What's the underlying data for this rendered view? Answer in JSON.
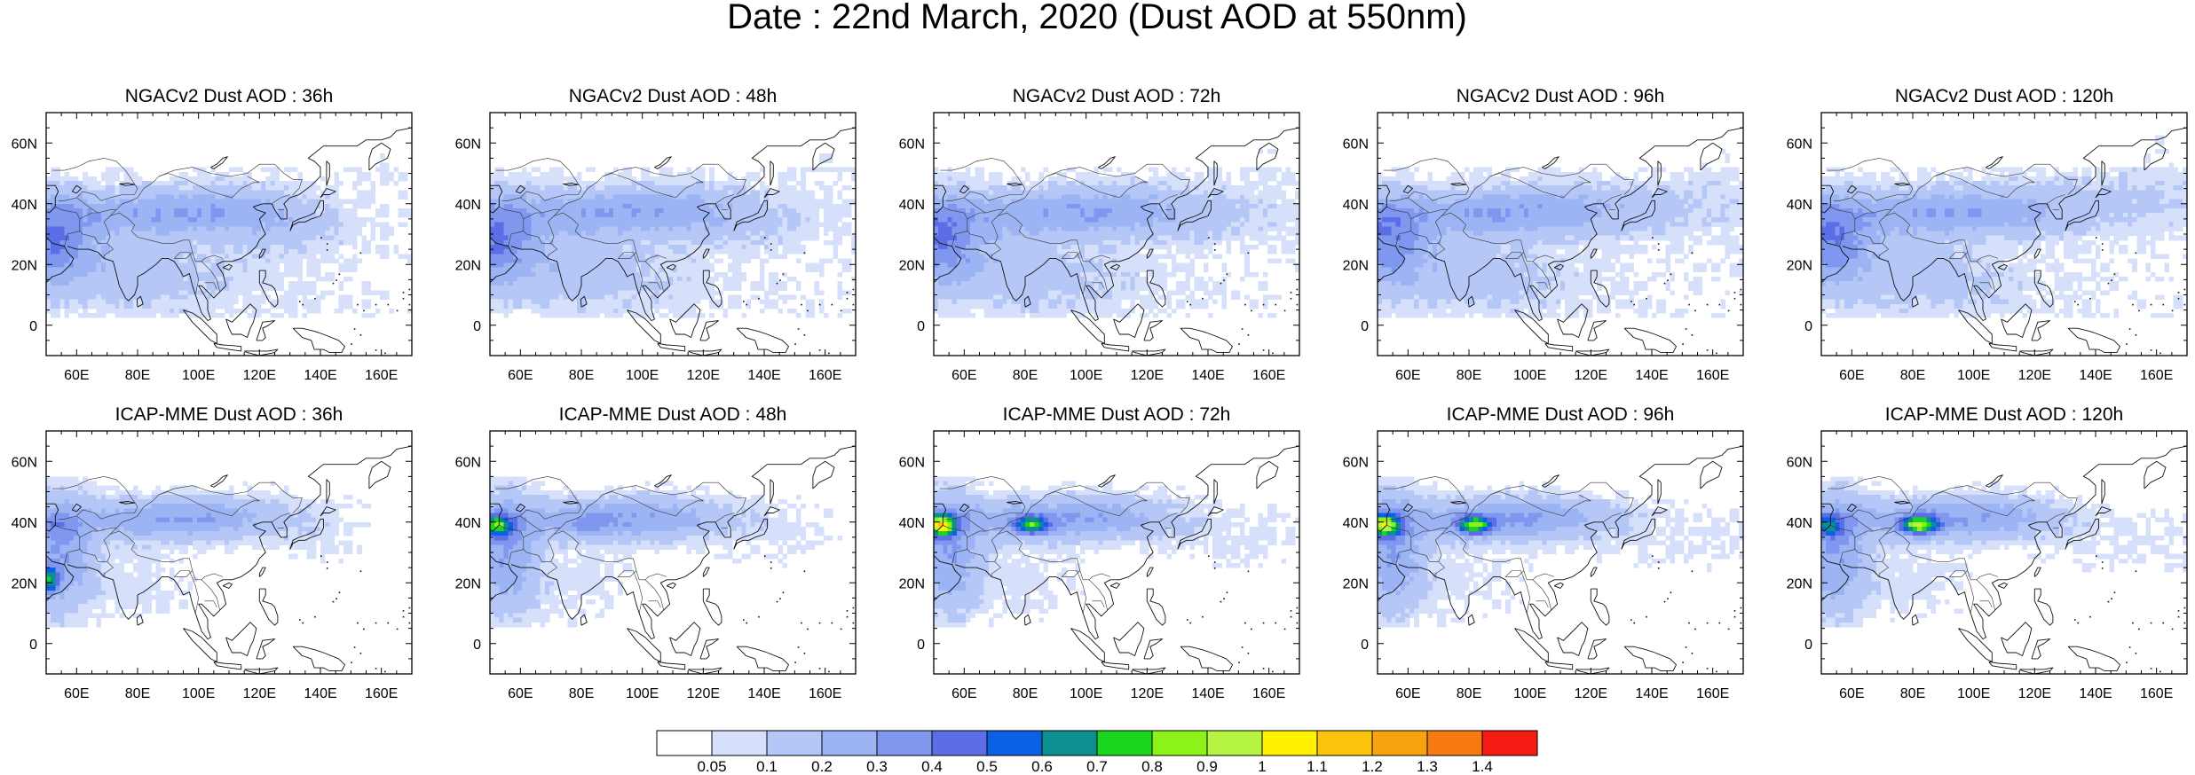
{
  "figure": {
    "title": "Date : 22nd March, 2020 (Dust AOD at 550nm)"
  },
  "axes": {
    "xticks": [
      "60E",
      "80E",
      "100E",
      "120E",
      "140E",
      "160E"
    ],
    "yticks": [
      "60N",
      "40N",
      "20N",
      "0"
    ]
  },
  "panels": [
    {
      "title": "NGACv2 Dust AOD : 36h",
      "model": "ngac",
      "lead": 36
    },
    {
      "title": "NGACv2 Dust AOD : 48h",
      "model": "ngac",
      "lead": 48
    },
    {
      "title": "NGACv2 Dust AOD : 72h",
      "model": "ngac",
      "lead": 72
    },
    {
      "title": "NGACv2 Dust AOD : 96h",
      "model": "ngac",
      "lead": 96
    },
    {
      "title": "NGACv2 Dust AOD : 120h",
      "model": "ngac",
      "lead": 120
    },
    {
      "title": "ICAP-MME Dust AOD : 36h",
      "model": "icap",
      "lead": 36
    },
    {
      "title": "ICAP-MME Dust AOD : 48h",
      "model": "icap",
      "lead": 48
    },
    {
      "title": "ICAP-MME Dust AOD : 72h",
      "model": "icap",
      "lead": 72
    },
    {
      "title": "ICAP-MME Dust AOD : 96h",
      "model": "icap",
      "lead": 96
    },
    {
      "title": "ICAP-MME Dust AOD : 120h",
      "model": "icap",
      "lead": 120
    }
  ],
  "colorbar": {
    "labels": [
      "0.05",
      "0.1",
      "0.2",
      "0.3",
      "0.4",
      "0.5",
      "0.6",
      "0.7",
      "0.8",
      "0.9",
      "1",
      "1.1",
      "1.2",
      "1.3",
      "1.4"
    ],
    "colors": [
      "#ffffff",
      "#d6e0fb",
      "#b5c7f7",
      "#9cb3f4",
      "#7f97ef",
      "#5b6ee6",
      "#0b61e3",
      "#0b8f8f",
      "#1bd61f",
      "#8df21a",
      "#b5f542",
      "#fff200",
      "#fcc30b",
      "#f9a20f",
      "#f67a0f",
      "#f51c14"
    ]
  }
}
